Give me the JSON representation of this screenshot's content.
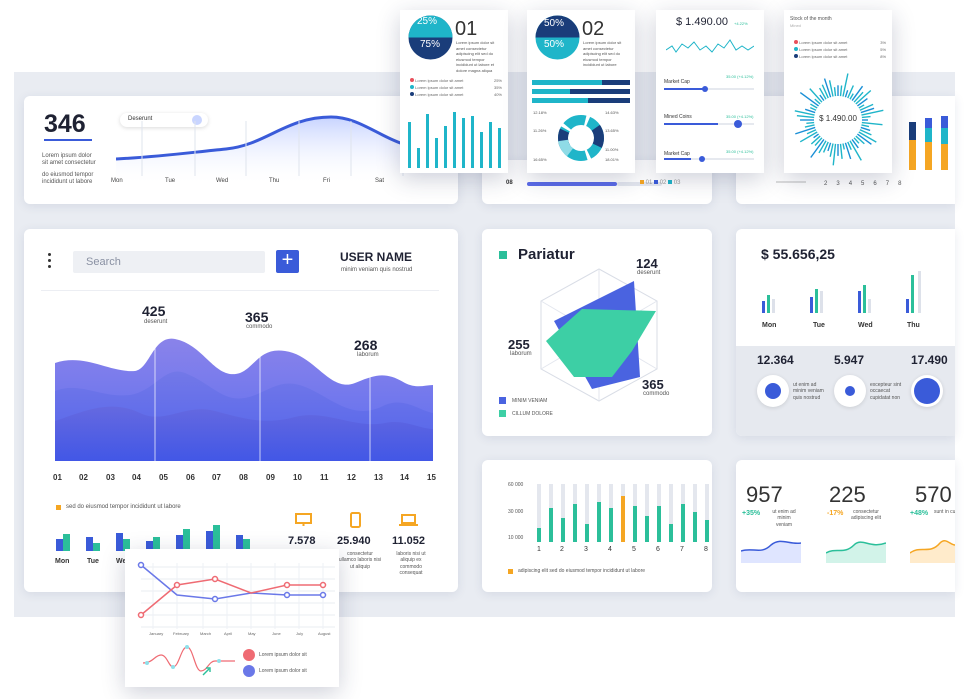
{
  "top_metric": {
    "value": "346",
    "caption1": "Lorem ipsum dolor",
    "caption2": "sit amet consectetur",
    "caption3": "do eiusmod tempor",
    "caption4": "incididunt ut labore",
    "pill": "Deserunt",
    "days": [
      "Mon",
      "Tue",
      "Wed",
      "Thu",
      "Fri",
      "Sat"
    ]
  },
  "float1": {
    "top_pct": "25%",
    "bottom_pct": "75%",
    "num": "01",
    "desc": "Lorem ipsum dolor sit amet consectetur adipiscing elit sed do eiusmod tempor incididunt ut labore et dolore magna aliqua",
    "legend": [
      {
        "label": "Lorem ipsum dolor sit amet",
        "pct": "25%",
        "color": "#e8505b"
      },
      {
        "label": "Lorem ipsum dolor sit amet",
        "pct": "35%",
        "color": "#1fb5c9"
      },
      {
        "label": "Lorem ipsum dolor sit amet",
        "pct": "40%",
        "color": "#1a3d7a"
      }
    ]
  },
  "float2": {
    "top_pct": "50%",
    "bottom_pct": "50%",
    "num": "02",
    "desc": "Lorem ipsum dolor sit amet consectetur adipiscing elit sed do eiusmod tempor incididunt ut labore",
    "donut_labels": [
      "12.18%",
      "11.26%",
      "14.63%",
      "13.65%",
      "11.00%",
      "18.01%",
      "16.65%"
    ]
  },
  "float3": {
    "price": "$ 1.490.00",
    "delta": "+4.22%",
    "rows": [
      {
        "label": "Market Cap",
        "value": "35.00 (+4.12%)",
        "level": 0.45
      },
      {
        "label": "Mined Coins",
        "value": "35.00 (+4.12%)",
        "level": 0.6
      },
      {
        "label": "Market Cap",
        "value": "35.00 (+4.12%)",
        "level": 0.3
      }
    ]
  },
  "float4": {
    "title": "Stock of the month",
    "sub": "Mined",
    "legend": [
      {
        "label": "Lorem ipsum dolor sit amet",
        "pct": "3%",
        "color": "#e8505b"
      },
      {
        "label": "Lorem ipsum dolor sit amet",
        "pct": "5%",
        "color": "#1fb5c9"
      },
      {
        "label": "Lorem ipsum dolor sit amet",
        "pct": "8%",
        "color": "#1a3d7a"
      }
    ],
    "center": "$ 1.490.00"
  },
  "behind": {
    "row_label": "08",
    "axis": [
      "1",
      "2",
      "3",
      "4",
      "5",
      "6",
      "7",
      "8"
    ],
    "legend": [
      "01",
      "02",
      "03",
      "04"
    ]
  },
  "main": {
    "search_placeholder": "Search",
    "user_name": "USER NAME",
    "user_sub": "minim veniam quis nostrud",
    "peaks": [
      {
        "value": "425",
        "label": "deserunt"
      },
      {
        "value": "365",
        "label": "commodo"
      },
      {
        "value": "268",
        "label": "laborum"
      }
    ],
    "x_labels": [
      "01",
      "02",
      "03",
      "04",
      "05",
      "06",
      "07",
      "08",
      "09",
      "10",
      "11",
      "12",
      "13",
      "14",
      "15"
    ],
    "footnote": "sed do eiusmod tempor incididunt ut labore",
    "bar_days": [
      "Mon",
      "Tue",
      "Wed"
    ],
    "devices": [
      {
        "icon": "monitor-icon",
        "value": "7.578",
        "caption": ""
      },
      {
        "icon": "phone-icon",
        "value": "25.940",
        "caption": "consectetur ullamco laboris nisi ut aliquip"
      },
      {
        "icon": "laptop-icon",
        "value": "11.052",
        "caption": "laboris nisi ut aliquip ex commodo consequat"
      }
    ]
  },
  "radar": {
    "title": "Pariatur",
    "values": [
      {
        "value": "124",
        "label": "deserunt"
      },
      {
        "value": "255",
        "label": "laborum"
      },
      {
        "value": "365",
        "label": "commodo"
      }
    ],
    "legend": [
      {
        "label": "MINIM VENIAM",
        "color": "#4a63e0"
      },
      {
        "label": "CILLUM DOLORE",
        "color": "#3dcfa5"
      }
    ]
  },
  "money": {
    "title": "$ 55.656,25",
    "days": [
      "Mon",
      "Tue",
      "Wed",
      "Thu"
    ],
    "stats": [
      {
        "value": "12.364",
        "caption": "ut enim ad minim veniam quis nostrud"
      },
      {
        "value": "5.947",
        "caption": "excepteur sint occaecat cupidatat non"
      },
      {
        "value": "17.490",
        "caption": ""
      }
    ]
  },
  "bars": {
    "y_labels": [
      "60 000",
      "30 000",
      "10 000"
    ],
    "x_labels": [
      "1",
      "2",
      "3",
      "4",
      "5",
      "6",
      "7",
      "8"
    ],
    "footnote": "adipiscing elit sed do eiusmod tempor incididunt ut labore"
  },
  "kpis": [
    {
      "value": "957",
      "delta": "+35%",
      "delta_color": "#2bbf9a",
      "caption": "ut enim ad minim veniam"
    },
    {
      "value": "225",
      "delta": "-17%",
      "delta_color": "#f5a623",
      "caption": "consectetur adipiscing elit"
    },
    {
      "value": "570",
      "delta": "+48%",
      "delta_color": "#2bbf9a",
      "caption": "sunt in culpa qui officia"
    }
  ],
  "line_card": {
    "months": [
      "January",
      "February",
      "March",
      "April",
      "May",
      "June",
      "July",
      "August",
      "September"
    ],
    "legend": [
      {
        "label": "Lorem ipsum dolor sit",
        "color": "#ef6b73"
      },
      {
        "label": "Lorem ipsum dolor sit",
        "color": "#6a78e8"
      }
    ]
  }
}
